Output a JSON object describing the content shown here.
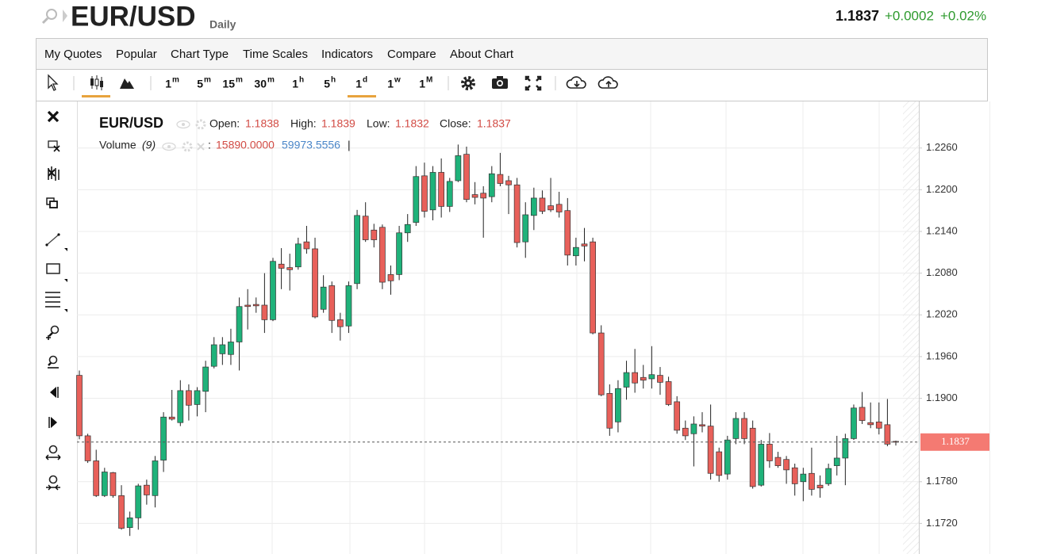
{
  "header": {
    "symbol": "EUR/USD",
    "period": "Daily",
    "change": "+0.0002",
    "change_pct": "+0.02%"
  },
  "menu": [
    "My Quotes",
    "Popular",
    "Chart Type",
    "Time Scales",
    "Indicators",
    "Compare",
    "About Chart"
  ],
  "periods": [
    {
      "n": "1",
      "u": "m"
    },
    {
      "n": "5",
      "u": "m"
    },
    {
      "n": "15",
      "u": "m"
    },
    {
      "n": "30",
      "u": "m"
    },
    {
      "n": "1",
      "u": "h"
    },
    {
      "n": "5",
      "u": "h"
    },
    {
      "n": "1",
      "u": "d"
    },
    {
      "n": "1",
      "u": "w"
    },
    {
      "n": "1",
      "u": "M"
    }
  ],
  "legend": {
    "symbol": "EUR/USD",
    "open": "Open:",
    "high": "High:",
    "low": "Low:",
    "close": "Close:",
    "volume": "Volume",
    "volume_param": "(9)",
    "separator": ":",
    "volume_value": "15890.0000",
    "volume_avg": "59973.5556",
    "cursor": "|"
  },
  "chart_data": {
    "type": "candlestick",
    "up_color": "#1fb27a",
    "down_color": "#e8605a",
    "last_price": 1.1837,
    "last_price_color": "#f47a72",
    "ylim": [
      1.1676,
      1.2327
    ],
    "yticks": [
      {
        "value": 1.226,
        "label": "1.2260"
      },
      {
        "value": 1.22,
        "label": "1.2200"
      },
      {
        "value": 1.214,
        "label": "1.2140"
      },
      {
        "value": 1.208,
        "label": "1.2080"
      },
      {
        "value": 1.202,
        "label": "1.2020"
      },
      {
        "value": 1.196,
        "label": "1.1960"
      },
      {
        "value": 1.19,
        "label": "1.1900"
      },
      {
        "value": 1.178,
        "label": "1.1780"
      },
      {
        "value": 1.172,
        "label": "1.1720"
      }
    ],
    "grid": true,
    "open": [
      1.1933,
      1.1846,
      1.181,
      1.176,
      1.1793,
      1.176,
      1.1714,
      1.1728,
      1.1775,
      1.176,
      1.1811,
      1.1873,
      1.1865,
      1.1911,
      1.1891,
      1.191,
      1.1946,
      1.1964,
      1.1963,
      1.1981,
      1.2034,
      1.2035,
      1.2034,
      1.2013,
      1.2093,
      1.2088,
      1.2089,
      1.2125,
      1.2115,
      1.2028,
      1.2062,
      1.2013,
      1.2004,
      1.2065,
      1.2162,
      1.2142,
      1.2146,
      1.2078,
      1.2078,
      1.2138,
      1.2153,
      1.222,
      1.2171,
      1.2225,
      1.2176,
      1.2213,
      1.2251,
      1.2193,
      1.2195,
      1.219,
      1.2222,
      1.2213,
      1.2207,
      1.2125,
      1.2163,
      1.2188,
      1.2177,
      1.2179,
      1.217,
      1.2105,
      1.2122,
      1.2125,
      1.1994,
      1.1907,
      1.1866,
      1.1916,
      1.1937,
      1.193,
      1.1928,
      1.1933,
      1.1924,
      1.1895,
      1.1857,
      1.1849,
      1.1862,
      1.186,
      1.1823,
      1.1791,
      1.1842,
      1.1871,
      1.1857,
      1.1775,
      1.1834,
      1.1815,
      1.1812,
      1.18,
      1.178,
      1.1792,
      1.1775,
      1.1777,
      1.1803,
      1.1814,
      1.1842,
      1.1887,
      1.1865,
      1.1866,
      1.1862,
      1.1838
    ],
    "high": [
      1.194,
      1.1849,
      1.1826,
      1.18,
      1.1794,
      1.1775,
      1.1737,
      1.1777,
      1.1783,
      1.1817,
      1.188,
      1.1912,
      1.1926,
      1.192,
      1.1916,
      1.1954,
      1.1988,
      1.1988,
      1.2,
      1.2045,
      1.2057,
      1.2045,
      1.208,
      1.2102,
      1.2116,
      1.2108,
      1.2131,
      1.2148,
      1.2131,
      1.2077,
      1.2068,
      1.2023,
      1.2068,
      1.2171,
      1.2182,
      1.2151,
      1.215,
      1.2091,
      1.2148,
      1.2165,
      1.2234,
      1.2239,
      1.2234,
      1.2245,
      1.2217,
      1.2265,
      1.2262,
      1.2211,
      1.2205,
      1.2234,
      1.2253,
      1.222,
      1.2217,
      1.2182,
      1.2203,
      1.2199,
      1.2217,
      1.2197,
      1.2188,
      1.2131,
      1.2145,
      1.2131,
      1.2005,
      1.192,
      1.1926,
      1.1954,
      1.1971,
      1.1948,
      1.1975,
      1.1945,
      1.1931,
      1.1903,
      1.1868,
      1.1874,
      1.188,
      1.1891,
      1.1829,
      1.1846,
      1.188,
      1.188,
      1.1868,
      1.184,
      1.185,
      1.1823,
      1.1817,
      1.1806,
      1.18,
      1.1829,
      1.1789,
      1.1806,
      1.1846,
      1.1849,
      1.1891,
      1.1909,
      1.1894,
      1.1894,
      1.1899,
      1.1839
    ],
    "low": [
      1.1841,
      1.1807,
      1.1758,
      1.1758,
      1.1757,
      1.1711,
      1.1702,
      1.1711,
      1.1747,
      1.1743,
      1.1794,
      1.1868,
      1.186,
      1.1868,
      1.1874,
      1.188,
      1.1943,
      1.1948,
      1.1948,
      1.194,
      1.1999,
      1.2023,
      1.1994,
      1.2011,
      1.2057,
      1.2055,
      1.2085,
      1.2108,
      1.2015,
      1.2023,
      1.1994,
      1.1983,
      1.1994,
      1.2057,
      1.2125,
      1.2117,
      1.2057,
      1.2049,
      1.207,
      1.2125,
      1.2148,
      1.216,
      1.2156,
      1.216,
      1.2168,
      1.2211,
      1.2182,
      1.2179,
      1.2131,
      1.2182,
      1.2205,
      1.2165,
      1.2117,
      1.2102,
      1.2142,
      1.2165,
      1.2168,
      1.216,
      1.2091,
      1.2091,
      1.2097,
      1.1992,
      1.1903,
      1.1846,
      1.1851,
      1.1898,
      1.1908,
      1.1914,
      1.1914,
      1.1905,
      1.1889,
      1.1849,
      1.184,
      1.1802,
      1.1851,
      1.1783,
      1.178,
      1.1783,
      1.1834,
      1.1834,
      1.177,
      1.1773,
      1.18,
      1.18,
      1.1777,
      1.176,
      1.1752,
      1.176,
      1.1757,
      1.1774,
      1.1789,
      1.1775,
      1.184,
      1.1863,
      1.1857,
      1.1848,
      1.1831,
      1.1832
    ],
    "close": [
      1.1846,
      1.181,
      1.176,
      1.1794,
      1.176,
      1.1713,
      1.1728,
      1.1774,
      1.1761,
      1.181,
      1.1873,
      1.187,
      1.1911,
      1.189,
      1.1911,
      1.1945,
      1.1977,
      1.1977,
      1.1981,
      1.2032,
      1.2032,
      1.2033,
      1.2013,
      1.2097,
      1.2087,
      1.2085,
      1.2122,
      1.2115,
      1.2017,
      1.206,
      1.2012,
      1.2003,
      1.2062,
      1.2163,
      1.2128,
      1.2128,
      1.2067,
      1.2069,
      1.2138,
      1.215,
      1.2219,
      1.2169,
      1.2225,
      1.2176,
      1.2212,
      1.2249,
      1.2186,
      1.2189,
      1.2188,
      1.2223,
      1.2209,
      1.2207,
      1.2124,
      1.2164,
      1.2188,
      1.2169,
      1.2171,
      1.2168,
      1.2106,
      1.2117,
      1.2119,
      1.1994,
      1.1905,
      1.1857,
      1.1914,
      1.1937,
      1.1922,
      1.1926,
      1.1934,
      1.1923,
      1.1891,
      1.1854,
      1.1846,
      1.1863,
      1.186,
      1.1792,
      1.1789,
      1.184,
      1.1871,
      1.1842,
      1.1773,
      1.1834,
      1.181,
      1.1803,
      1.1797,
      1.1777,
      1.1791,
      1.1769,
      1.1771,
      1.1799,
      1.1814,
      1.1842,
      1.1886,
      1.1868,
      1.1862,
      1.1857,
      1.1834,
      1.1837
    ]
  }
}
